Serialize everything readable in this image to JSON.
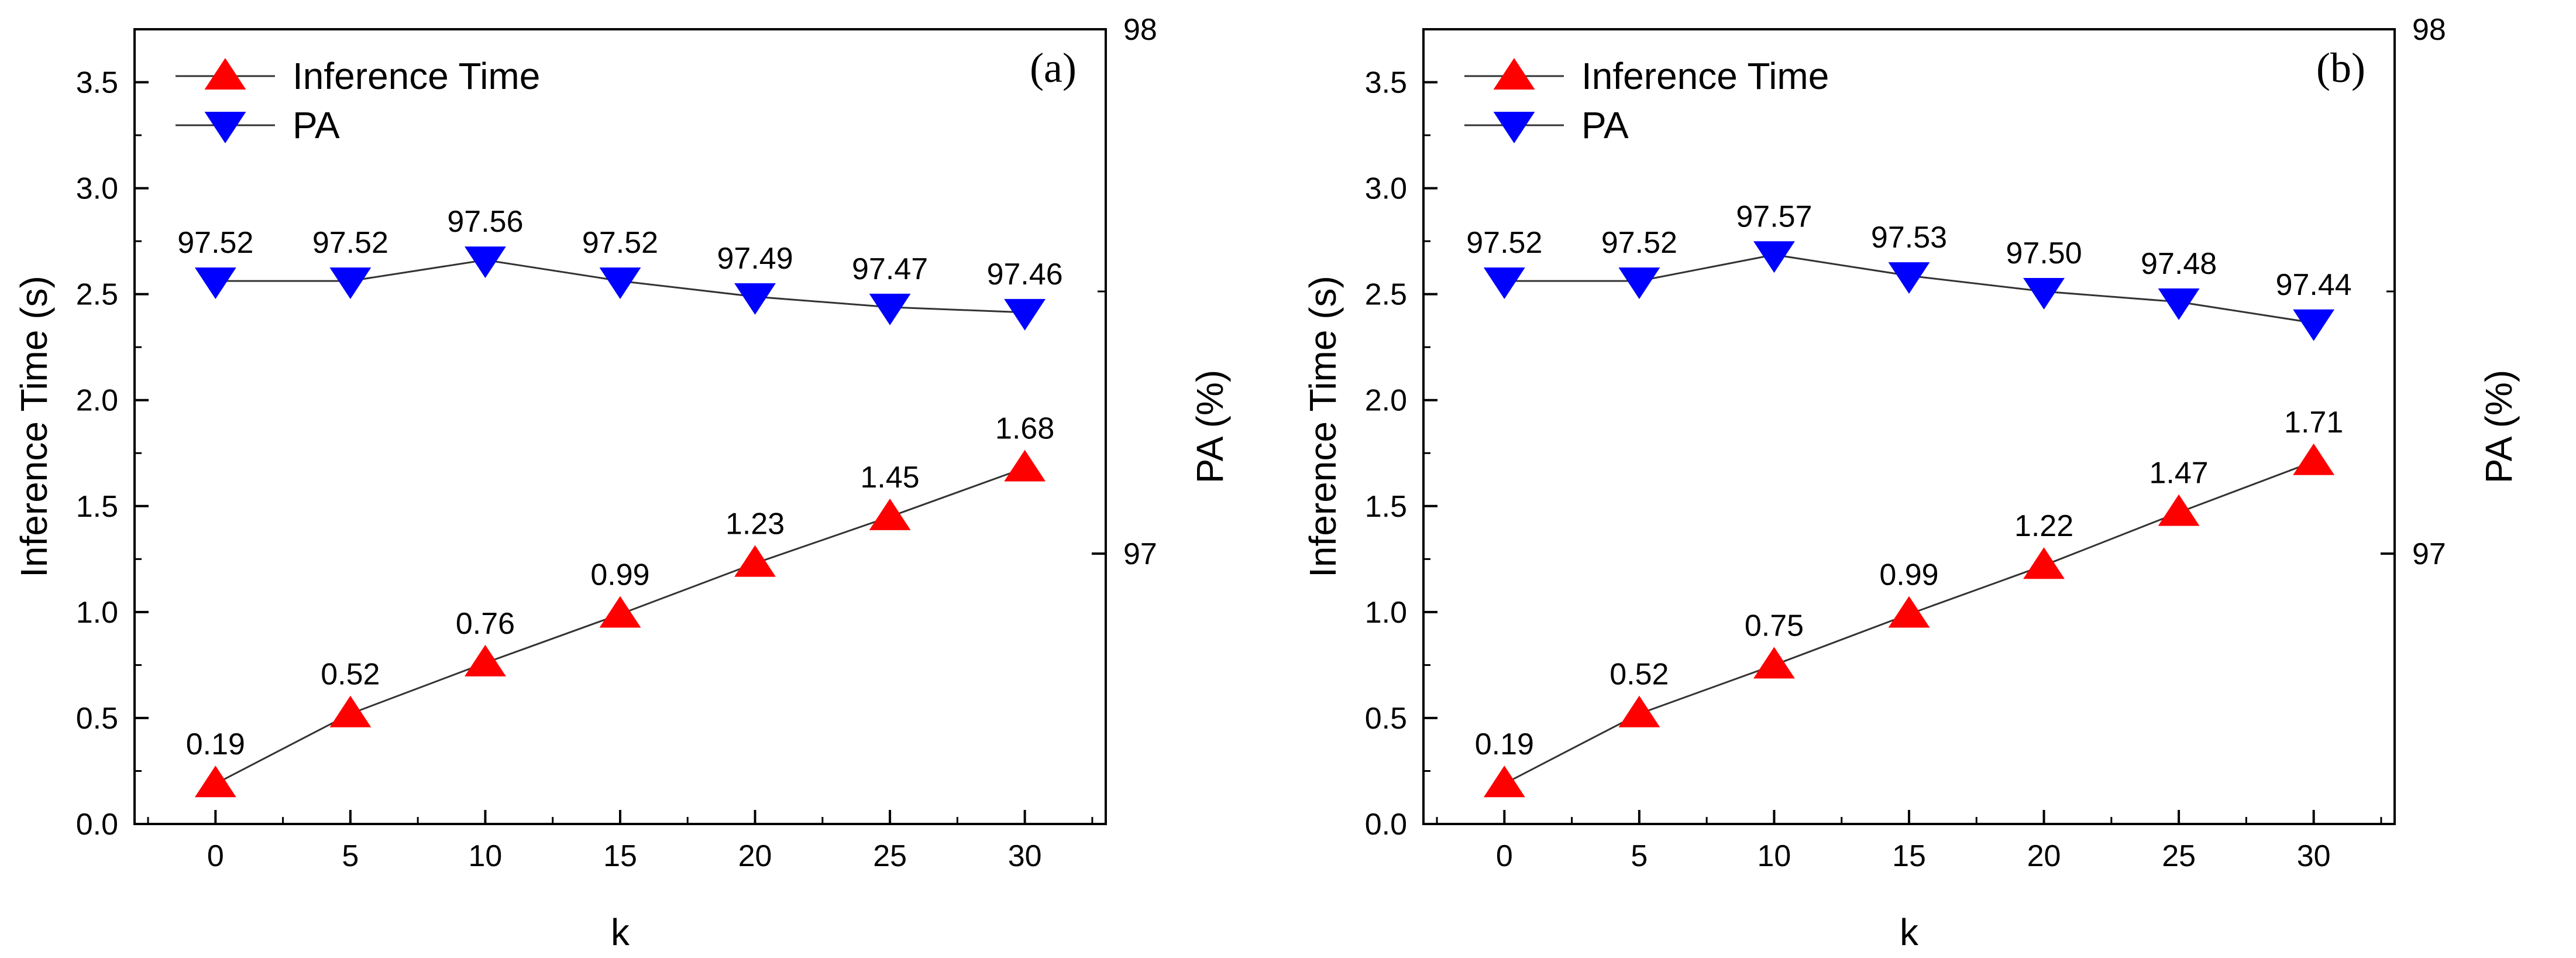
{
  "chart_data": [
    {
      "type": "line",
      "panel": "(a)",
      "xlabel": "k",
      "ylabel": "Inference Time (s)",
      "y2label": "PA (%)",
      "x": [
        0,
        5,
        10,
        15,
        20,
        25,
        30
      ],
      "xticks": [
        "0",
        "5",
        "10",
        "15",
        "20",
        "25",
        "30"
      ],
      "xlim": [
        -3,
        33
      ],
      "ylim": [
        0,
        3.75
      ],
      "yticks": [
        "0.0",
        "0.5",
        "1.0",
        "1.5",
        "2.0",
        "2.5",
        "3.0",
        "3.5"
      ],
      "y2lim": [
        96.4844,
        98
      ],
      "y2ticks": [
        "97",
        "98"
      ],
      "series": [
        {
          "name": "Inference Time",
          "axis": "left",
          "marker": "triangle-up",
          "color": "#ff0000",
          "values": [
            0.19,
            0.52,
            0.76,
            0.99,
            1.23,
            1.45,
            1.68
          ],
          "labels": [
            "0.19",
            "0.52",
            "0.76",
            "0.99",
            "1.23",
            "1.45",
            "1.68"
          ]
        },
        {
          "name": "PA",
          "axis": "right",
          "marker": "triangle-down",
          "color": "#0000ff",
          "values": [
            97.52,
            97.52,
            97.56,
            97.52,
            97.49,
            97.47,
            97.46
          ],
          "labels": [
            "97.52",
            "97.52",
            "97.56",
            "97.52",
            "97.49",
            "97.47",
            "97.46"
          ]
        }
      ],
      "legend": "top-left"
    },
    {
      "type": "line",
      "panel": "(b)",
      "xlabel": "k",
      "ylabel": "Inference Time (s)",
      "y2label": "PA (%)",
      "x": [
        0,
        5,
        10,
        15,
        20,
        25,
        30
      ],
      "xticks": [
        "0",
        "5",
        "10",
        "15",
        "20",
        "25",
        "30"
      ],
      "xlim": [
        -3,
        33
      ],
      "ylim": [
        0,
        3.75
      ],
      "yticks": [
        "0.0",
        "0.5",
        "1.0",
        "1.5",
        "2.0",
        "2.5",
        "3.0",
        "3.5"
      ],
      "y2lim": [
        96.4844,
        98
      ],
      "y2ticks": [
        "97",
        "98"
      ],
      "series": [
        {
          "name": "Inference Time",
          "axis": "left",
          "marker": "triangle-up",
          "color": "#ff0000",
          "values": [
            0.19,
            0.52,
            0.75,
            0.99,
            1.22,
            1.47,
            1.71
          ],
          "labels": [
            "0.19",
            "0.52",
            "0.75",
            "0.99",
            "1.22",
            "1.47",
            "1.71"
          ]
        },
        {
          "name": "PA",
          "axis": "right",
          "marker": "triangle-down",
          "color": "#0000ff",
          "values": [
            97.52,
            97.52,
            97.57,
            97.53,
            97.5,
            97.48,
            97.44
          ],
          "labels": [
            "97.52",
            "97.52",
            "97.57",
            "97.53",
            "97.50",
            "97.48",
            "97.44"
          ]
        }
      ],
      "legend": "top-left"
    }
  ]
}
